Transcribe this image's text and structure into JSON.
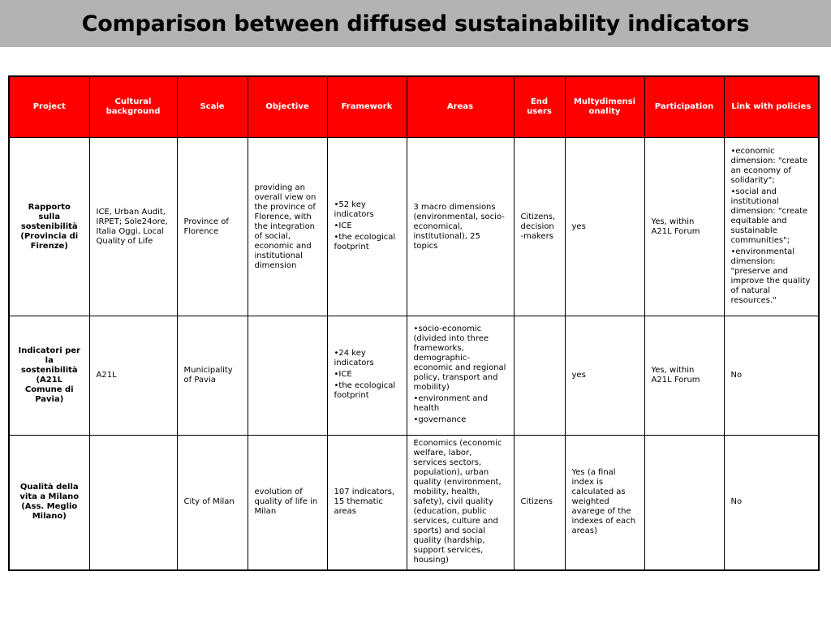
{
  "title": "Comparison between diffused sustainability indicators",
  "colors": {
    "header_bg": "#ff0000",
    "header_text": "#ffffff",
    "title_bar_bg": "#b3b3b3"
  },
  "headers": {
    "project": "Project",
    "cultural": "Cultural background",
    "scale": "Scale",
    "objective": "Objective",
    "framework": "Framework",
    "areas": "Areas",
    "end_users": "End users",
    "multi": "Multydimensi onality",
    "participation": "Participation",
    "link": "Link with policies"
  },
  "rows": [
    {
      "project": "Rapporto sulla sostenibilità (Provincia di Firenze)",
      "cultural": "ICE, Urban Audit, IRPET; Sole24ore, Italia Oggi, Local Quality of Life",
      "scale": "Province of Florence",
      "objective": "providing an overall view on the province of Florence, with the integration of social, economic and institutional dimension",
      "framework": [
        "52 key indicators",
        "ICE",
        "the ecological footprint"
      ],
      "areas": "3 macro dimensions (environmental, socio-economical, institutional), 25 topics",
      "end_users": "Citizens, decision -makers",
      "multi": "yes",
      "participation": "Yes, within A21L Forum",
      "link": [
        "economic dimension: \"create an economy of solidarity\";",
        "social and institutional dimension: \"create equitable and sustainable communities\";",
        "environmental dimension: \"preserve and improve the quality of natural resources.\""
      ]
    },
    {
      "project": "Indicatori per la sostenibilità (A21L Comune di Pavia)",
      "cultural": "A21L",
      "scale": "Municipality of Pavia",
      "objective": "",
      "framework": [
        "24 key indicators",
        "ICE",
        "the ecological footprint"
      ],
      "areas": [
        "socio-economic (divided into three frameworks, demographic-economic and regional policy, transport and mobility)",
        "environment and health",
        "governance"
      ],
      "end_users": "",
      "multi": "yes",
      "participation": "Yes, within A21L Forum",
      "link": "No"
    },
    {
      "project": "Qualità della vita a Milano (Ass. Meglio Milano)",
      "cultural": "",
      "scale": "City of Milan",
      "objective": "evolution of quality of life in Milan",
      "framework": "107 indicators, 15 thematic areas",
      "areas": "Economics (economic welfare, labor, services sectors, population), urban quality (environment, mobility, health, safety), civil quality (education, public services, culture and sports) and social quality (hardship, support services, housing)",
      "end_users": "Citizens",
      "multi": "Yes (a final index is calculated as weighted avarege of the indexes of each areas)",
      "participation": "",
      "link": "No"
    }
  ]
}
